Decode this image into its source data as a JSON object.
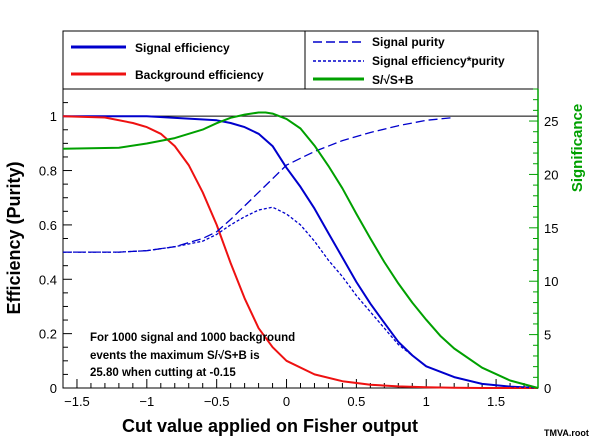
{
  "chart_data": {
    "type": "line",
    "xlabel": "Cut value applied on Fisher output",
    "ylabel_left": "Efficiency (Purity)",
    "ylabel_right": "Significance",
    "footer": "TMVA.root",
    "xlim": [
      -1.6,
      1.8
    ],
    "ylim_left": [
      0,
      1.1
    ],
    "ylim_right": [
      0,
      28
    ],
    "x_ticks": [
      -1.5,
      -1,
      -0.5,
      0,
      0.5,
      1,
      1.5
    ],
    "x_tick_labels": [
      "−1.5",
      "−1",
      "−0.5",
      "0",
      "0.5",
      "1",
      "1.5"
    ],
    "y_left_ticks": [
      0,
      0.2,
      0.4,
      0.6,
      0.8,
      1
    ],
    "y_left_tick_labels": [
      "0",
      "0.2",
      "0.4",
      "0.6",
      "0.8",
      "1"
    ],
    "y_right_ticks": [
      0,
      5,
      10,
      15,
      20,
      25
    ],
    "y_right_tick_labels": [
      "0",
      "5",
      "10",
      "15",
      "20",
      "25"
    ],
    "colors": {
      "signal": "#0000cc",
      "background": "#ee1111",
      "significance": "#00a000",
      "axis": "#000000",
      "right_axis": "#00a000"
    },
    "legend": [
      {
        "label": "Signal efficiency",
        "color": "#0000cc",
        "style": "solid",
        "width": 3
      },
      {
        "label": "Background efficiency",
        "color": "#ee1111",
        "style": "solid",
        "width": 3
      },
      {
        "label": "Signal purity",
        "color": "#0000cc",
        "style": "dashed",
        "width": 1.6
      },
      {
        "label": "Signal efficiency*purity",
        "color": "#0000cc",
        "style": "dotted",
        "width": 1.6
      },
      {
        "label": "S/√S+B",
        "color": "#00a000",
        "style": "solid",
        "width": 3
      }
    ],
    "annotation": {
      "line1": "For 1000 signal and 1000 background",
      "line2": "events the maximum S/√S+B is",
      "line3": "25.80 when cutting at -0.15"
    },
    "series": [
      {
        "name": "Signal efficiency",
        "axis": "left",
        "x": [
          -1.6,
          -1.0,
          -0.5,
          -0.4,
          -0.3,
          -0.2,
          -0.1,
          0.0,
          0.1,
          0.2,
          0.3,
          0.4,
          0.5,
          0.6,
          0.7,
          0.8,
          0.9,
          1.0,
          1.2,
          1.4,
          1.6,
          1.8
        ],
        "values": [
          1.0,
          1.0,
          0.985,
          0.975,
          0.96,
          0.935,
          0.89,
          0.81,
          0.74,
          0.66,
          0.57,
          0.48,
          0.39,
          0.31,
          0.24,
          0.17,
          0.12,
          0.08,
          0.04,
          0.015,
          0.005,
          0.0
        ]
      },
      {
        "name": "Background efficiency",
        "axis": "left",
        "x": [
          -1.6,
          -1.3,
          -1.1,
          -1.0,
          -0.9,
          -0.8,
          -0.7,
          -0.6,
          -0.5,
          -0.4,
          -0.3,
          -0.2,
          -0.1,
          0.0,
          0.2,
          0.4,
          0.6,
          0.8,
          1.0,
          1.2,
          1.4,
          1.6,
          1.8
        ],
        "values": [
          1.0,
          0.995,
          0.975,
          0.96,
          0.935,
          0.89,
          0.82,
          0.72,
          0.6,
          0.46,
          0.33,
          0.22,
          0.15,
          0.1,
          0.05,
          0.025,
          0.012,
          0.006,
          0.003,
          0.001,
          0.0,
          0.0,
          0.0
        ]
      },
      {
        "name": "Signal purity",
        "axis": "left",
        "x": [
          -1.6,
          -1.2,
          -1.0,
          -0.8,
          -0.6,
          -0.5,
          -0.4,
          -0.3,
          -0.2,
          -0.1,
          0.0,
          0.2,
          0.4,
          0.6,
          0.8,
          1.0,
          1.2
        ],
        "values": [
          0.5,
          0.5,
          0.505,
          0.52,
          0.55,
          0.575,
          0.62,
          0.67,
          0.72,
          0.77,
          0.82,
          0.87,
          0.91,
          0.94,
          0.965,
          0.985,
          0.995
        ]
      },
      {
        "name": "Signal efficiency*purity",
        "axis": "left",
        "x": [
          -1.6,
          -1.2,
          -1.0,
          -0.8,
          -0.6,
          -0.5,
          -0.4,
          -0.3,
          -0.2,
          -0.1,
          0.0,
          0.1,
          0.2,
          0.3,
          0.4,
          0.5,
          0.6,
          0.8,
          1.0,
          1.2,
          1.4,
          1.6,
          1.8
        ],
        "values": [
          0.5,
          0.5,
          0.505,
          0.52,
          0.54,
          0.565,
          0.6,
          0.63,
          0.655,
          0.665,
          0.64,
          0.6,
          0.54,
          0.47,
          0.41,
          0.34,
          0.28,
          0.16,
          0.08,
          0.04,
          0.015,
          0.005,
          0.0
        ]
      },
      {
        "name": "S/√S+B",
        "axis": "right",
        "x": [
          -1.6,
          -1.2,
          -1.0,
          -0.8,
          -0.6,
          -0.5,
          -0.4,
          -0.3,
          -0.2,
          -0.15,
          -0.1,
          0.0,
          0.1,
          0.2,
          0.3,
          0.4,
          0.5,
          0.6,
          0.7,
          0.8,
          0.9,
          1.0,
          1.1,
          1.2,
          1.4,
          1.6,
          1.8
        ],
        "values": [
          22.4,
          22.5,
          22.9,
          23.4,
          24.2,
          24.8,
          25.3,
          25.6,
          25.8,
          25.8,
          25.7,
          25.2,
          24.3,
          22.7,
          20.8,
          18.7,
          16.3,
          14.0,
          11.8,
          9.8,
          8.0,
          6.4,
          4.9,
          3.7,
          1.9,
          0.7,
          0.0
        ]
      }
    ]
  }
}
